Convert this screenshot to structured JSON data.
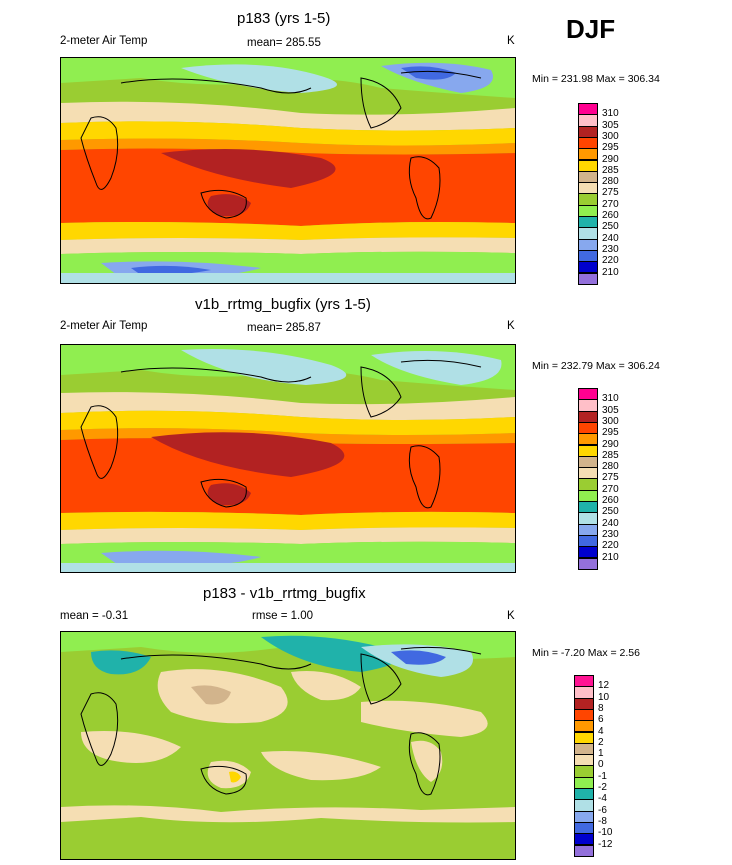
{
  "season": "DJF",
  "panels": [
    {
      "title": "p183 (yrs 1-5)",
      "left_label": "2-meter Air Temp",
      "center_label": "mean= 285.55",
      "units": "K",
      "minmax": "Min = 231.98 Max = 306.34",
      "legend_labels": [
        "310",
        "305",
        "300",
        "295",
        "290",
        "285",
        "280",
        "275",
        "270",
        "260",
        "250",
        "240",
        "230",
        "220",
        "210"
      ],
      "legend_colors": [
        "#ff0090",
        "#ffbfc8",
        "#b22222",
        "#ff4500",
        "#ff9900",
        "#ffd700",
        "#d2b48c",
        "#f5deb3",
        "#9acd32",
        "#90ee50",
        "#20b2aa",
        "#b0e0e6",
        "#87a8ee",
        "#4169e1",
        "#0000cd",
        "#9370db"
      ]
    },
    {
      "title": "v1b_rrtmg_bugfix (yrs 1-5)",
      "left_label": "2-meter Air Temp",
      "center_label": "mean= 285.87",
      "units": "K",
      "minmax": "Min = 232.79 Max = 306.24",
      "legend_labels": [
        "310",
        "305",
        "300",
        "295",
        "290",
        "285",
        "280",
        "275",
        "270",
        "260",
        "250",
        "240",
        "230",
        "220",
        "210"
      ],
      "legend_colors": [
        "#ff0090",
        "#ffbfc8",
        "#b22222",
        "#ff4500",
        "#ff9900",
        "#ffd700",
        "#d2b48c",
        "#f5deb3",
        "#9acd32",
        "#90ee50",
        "#20b2aa",
        "#b0e0e6",
        "#87a8ee",
        "#4169e1",
        "#0000cd",
        "#9370db"
      ]
    },
    {
      "title": "p183 - v1b_rrtmg_bugfix",
      "left_label": "mean =  -0.31",
      "center_label": "rmse =   1.00",
      "units": "K",
      "minmax": "Min =  -7.20 Max =   2.56",
      "legend_labels": [
        "12",
        "10",
        "8",
        "6",
        "4",
        "2",
        "1",
        "0",
        "-1",
        "-2",
        "-4",
        "-6",
        "-8",
        "-10",
        "-12"
      ],
      "legend_colors": [
        "#ff1493",
        "#ffbfc8",
        "#b22222",
        "#ff4500",
        "#ff9900",
        "#ffd700",
        "#d2b48c",
        "#f5deb3",
        "#9acd32",
        "#90ee50",
        "#20b2aa",
        "#b0e0e6",
        "#87a8ee",
        "#4169e1",
        "#0000cd",
        "#9370db"
      ]
    }
  ]
}
